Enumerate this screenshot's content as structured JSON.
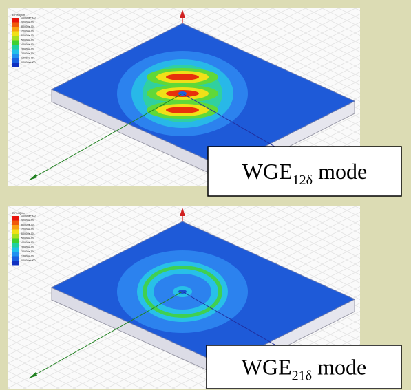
{
  "panels": [
    {
      "legend": {
        "title": "E Field[V/m]",
        "levels": [
          "1.0000e+000",
          "9.0000e-001",
          "8.0000e-001",
          "7.0000e-001",
          "6.0000e-001",
          "5.0000e-001",
          "4.0000e-001",
          "3.0000e-001",
          "2.0000e-001",
          "1.0000e-001",
          "0.0000e+000"
        ]
      },
      "label": {
        "text": "WGE",
        "subscript": "12δ",
        "suffix": "mode"
      }
    },
    {
      "legend": {
        "title": "E Field[V/m]",
        "levels": [
          "1.0000e+000",
          "9.0000e-001",
          "8.0000e-001",
          "7.0000e-001",
          "6.0000e-001",
          "5.0000e-001",
          "4.0000e-001",
          "3.0000e-001",
          "2.0000e-001",
          "1.0000e-001",
          "0.0000e+000"
        ]
      },
      "label": {
        "text": "WGE",
        "subscript": "21δ",
        "suffix": "mode"
      }
    }
  ]
}
